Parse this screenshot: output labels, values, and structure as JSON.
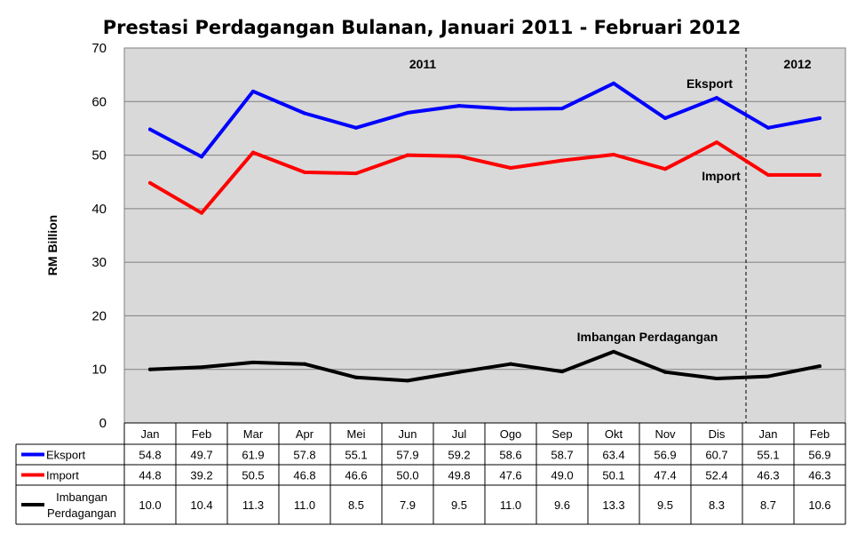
{
  "chart_data": {
    "type": "line",
    "title": "Prestasi Perdagangan Bulanan, Januari 2011 - Februari 2012",
    "xlabel": "",
    "ylabel": "RM Billion",
    "ylim": [
      0,
      70
    ],
    "yticks": [
      "0",
      "10",
      "20",
      "30",
      "40",
      "50",
      "60",
      "70"
    ],
    "grid": true,
    "categories": [
      "Jan",
      "Feb",
      "Mar",
      "Apr",
      "Mei",
      "Jun",
      "Jul",
      "Ogo",
      "Sep",
      "Okt",
      "Nov",
      "Dis",
      "Jan",
      "Feb"
    ],
    "year_labels": [
      "2011",
      "2012"
    ],
    "series": [
      {
        "name": "Eksport",
        "color": "#0000ff",
        "values": [
          54.8,
          49.7,
          61.9,
          57.8,
          55.1,
          57.9,
          59.2,
          58.6,
          58.7,
          63.4,
          56.9,
          60.7,
          55.1,
          56.9
        ],
        "display": [
          "54.8",
          "49.7",
          "61.9",
          "57.8",
          "55.1",
          "57.9",
          "59.2",
          "58.6",
          "58.7",
          "63.4",
          "56.9",
          "60.7",
          "55.1",
          "56.9"
        ]
      },
      {
        "name": "Import",
        "color": "#ff0000",
        "values": [
          44.8,
          39.2,
          50.5,
          46.8,
          46.6,
          50.0,
          49.8,
          47.6,
          49.0,
          50.1,
          47.4,
          52.4,
          46.3,
          46.3
        ],
        "display": [
          "44.8",
          "39.2",
          "50.5",
          "46.8",
          "46.6",
          "50.0",
          "49.8",
          "47.6",
          "49.0",
          "50.1",
          "47.4",
          "52.4",
          "46.3",
          "46.3"
        ]
      },
      {
        "name": "Imbangan Perdagangan",
        "table_name": [
          "Imbangan",
          "Perdagangan"
        ],
        "color": "#000000",
        "values": [
          10.0,
          10.4,
          11.3,
          11.0,
          8.5,
          7.9,
          9.5,
          11.0,
          9.6,
          13.3,
          9.5,
          8.3,
          8.7,
          10.6
        ],
        "display": [
          "10.0",
          "10.4",
          "11.3",
          "11.0",
          "8.5",
          "7.9",
          "9.5",
          "11.0",
          "9.6",
          "13.3",
          "9.5",
          "8.3",
          "8.7",
          "10.6"
        ]
      }
    ]
  }
}
